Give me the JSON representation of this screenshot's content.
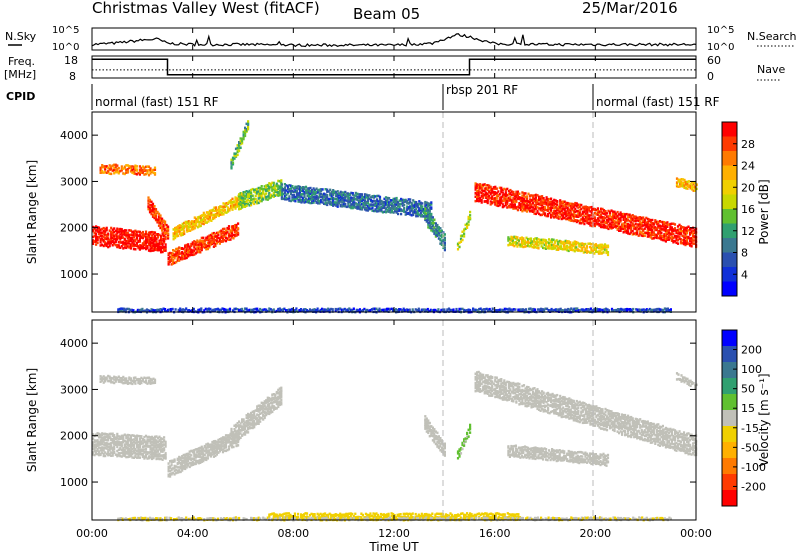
{
  "header": {
    "title": "Christmas Valley West (fitACF)",
    "beam": "Beam 05",
    "date": "25/Mar/2016"
  },
  "summary_panels": {
    "nsky_label": "N.Sky",
    "nsearch_label": "N.Search",
    "noise_ticks": [
      "10^5",
      "10^0"
    ],
    "freq_label_1": "Freq.",
    "freq_label_2": "[MHz]",
    "freq_ticks": [
      "18",
      "8"
    ],
    "nave_label": "Nave",
    "nave_ticks": [
      "60",
      "0"
    ],
    "cpid_label": "CPID",
    "cpid_segments": [
      {
        "label": "normal (fast) 151 RF",
        "start_hour": 0
      },
      {
        "label": "rbsp 201 RF",
        "start_hour": 14
      },
      {
        "label": "normal (fast) 151 RF",
        "start_hour": 20
      }
    ]
  },
  "axes": {
    "xlabel": "Time UT",
    "ylabel": "Slant Range [km]",
    "xticks": [
      "00:00",
      "04:00",
      "08:00",
      "12:00",
      "16:00",
      "20:00",
      "00:00"
    ],
    "yticks": [
      "1000",
      "2000",
      "3000",
      "4000"
    ]
  },
  "power_colorbar": {
    "label": "Power [dB]",
    "ticks": [
      "28",
      "24",
      "20",
      "16",
      "12",
      "8",
      "4"
    ],
    "colors": [
      "#ff0000",
      "#ff3a00",
      "#ff7a00",
      "#ffb000",
      "#f0d000",
      "#c8d800",
      "#60c030",
      "#30a070",
      "#3a7890",
      "#2a50b0",
      "#1030d8",
      "#0000ff"
    ]
  },
  "velocity_colorbar": {
    "label": "Velocity [m s⁻¹]",
    "ticks": [
      "200",
      "100",
      "50",
      "15",
      "-15",
      "-50",
      "-100",
      "-200"
    ],
    "colors": [
      "#0000ff",
      "#2a50b0",
      "#3a7890",
      "#30a070",
      "#60c030",
      "#c0c0b8",
      "#f0d000",
      "#ffb000",
      "#ff7a00",
      "#ff3a00",
      "#ff0000"
    ]
  },
  "chart_data": [
    {
      "type": "line",
      "name": "noise-summary",
      "x_range_hours": [
        0,
        24
      ],
      "series": [
        {
          "name": "N.Sky",
          "x": [
            0,
            1,
            2,
            2.6,
            3,
            4,
            6,
            8,
            10,
            12,
            13.5,
            14,
            14.5,
            15,
            16,
            18,
            20,
            22,
            24
          ],
          "y": [
            0.25,
            0.32,
            0.45,
            0.5,
            0.3,
            0.25,
            0.25,
            0.22,
            0.22,
            0.22,
            0.3,
            0.5,
            0.7,
            0.6,
            0.28,
            0.25,
            0.25,
            0.25,
            0.25
          ]
        }
      ]
    },
    {
      "type": "line",
      "name": "frequency-nave",
      "x_range_hours": [
        0,
        24
      ],
      "ylim_freq": [
        8,
        18
      ],
      "ylim_nave": [
        0,
        60
      ],
      "series": [
        {
          "name": "Freq.",
          "x": [
            0,
            3,
            3,
            15,
            15,
            24
          ],
          "y": [
            16.5,
            16.5,
            9.5,
            9.5,
            16.5,
            16.5
          ]
        },
        {
          "name": "Nave",
          "x": [
            0,
            24
          ],
          "y": [
            22,
            22
          ]
        }
      ]
    },
    {
      "type": "heatmap",
      "name": "power",
      "x_range_hours": [
        0,
        24
      ],
      "ylim": [
        180,
        4500
      ],
      "zlim": [
        0,
        30
      ],
      "bands": [
        {
          "t0": 0.0,
          "t1": 2.9,
          "r0s": 1850,
          "r0e": 1700,
          "width": 420,
          "z": 29
        },
        {
          "t0": 2.2,
          "t1": 3.0,
          "r0s": 2550,
          "r0e": 1900,
          "width": 300,
          "z": 27
        },
        {
          "t0": 3.0,
          "t1": 5.8,
          "r0s": 1350,
          "r0e": 2000,
          "width": 300,
          "z": 27
        },
        {
          "t0": 3.2,
          "t1": 6.0,
          "r0s": 1900,
          "r0e": 2650,
          "width": 250,
          "z": 20
        },
        {
          "t0": 0.3,
          "t1": 2.5,
          "r0s": 3300,
          "r0e": 3250,
          "width": 200,
          "z": 24
        },
        {
          "t0": 5.5,
          "t1": 6.2,
          "r0s": 3400,
          "r0e": 4300,
          "width": 220,
          "z": 13
        },
        {
          "t0": 5.8,
          "t1": 7.5,
          "r0s": 2600,
          "r0e": 2900,
          "width": 350,
          "z": 14
        },
        {
          "t0": 7.5,
          "t1": 13.5,
          "r0s": 2800,
          "r0e": 2400,
          "width": 350,
          "z": 8
        },
        {
          "t0": 13.2,
          "t1": 14.0,
          "r0s": 2300,
          "r0e": 1700,
          "width": 350,
          "z": 10
        },
        {
          "t0": 14.5,
          "t1": 15.0,
          "r0s": 1600,
          "r0e": 2300,
          "width": 200,
          "z": 16
        },
        {
          "t0": 15.2,
          "t1": 24.0,
          "r0s": 2800,
          "r0e": 1800,
          "width": 420,
          "z": 28
        },
        {
          "t0": 16.5,
          "t1": 20.5,
          "r0s": 1750,
          "r0e": 1550,
          "width": 220,
          "z": 18
        },
        {
          "t0": 23.2,
          "t1": 24.0,
          "r0s": 3000,
          "r0e": 2900,
          "width": 200,
          "z": 21
        },
        {
          "t0": 1.0,
          "t1": 23.0,
          "r0s": 220,
          "r0e": 220,
          "width": 120,
          "z": 5
        }
      ]
    },
    {
      "type": "heatmap",
      "name": "velocity",
      "x_range_hours": [
        0,
        24
      ],
      "ylim": [
        180,
        4500
      ],
      "zlim": [
        -250,
        250
      ],
      "bands": [
        {
          "t0": 0.0,
          "t1": 2.9,
          "r0s": 1850,
          "r0e": 1750,
          "width": 500,
          "z": 0
        },
        {
          "t0": 3.0,
          "t1": 5.8,
          "r0s": 1300,
          "r0e": 2000,
          "width": 350,
          "z": 0
        },
        {
          "t0": 5.5,
          "t1": 7.5,
          "r0s": 2000,
          "r0e": 2900,
          "width": 400,
          "z": 0
        },
        {
          "t0": 0.3,
          "t1": 2.5,
          "r0s": 3250,
          "r0e": 3200,
          "width": 150,
          "z": 0
        },
        {
          "t0": 13.2,
          "t1": 14.0,
          "r0s": 2300,
          "r0e": 1700,
          "width": 300,
          "z": 0
        },
        {
          "t0": 14.5,
          "t1": 15.0,
          "r0s": 1600,
          "r0e": 2200,
          "width": 200,
          "z": 30
        },
        {
          "t0": 15.2,
          "t1": 24.0,
          "r0s": 3200,
          "r0e": 1800,
          "width": 450,
          "z": 0
        },
        {
          "t0": 16.5,
          "t1": 20.5,
          "r0s": 1700,
          "r0e": 1500,
          "width": 250,
          "z": 0
        },
        {
          "t0": 23.2,
          "t1": 24.0,
          "r0s": 3300,
          "r0e": 3100,
          "width": 150,
          "z": 0
        },
        {
          "t0": 7.0,
          "t1": 17.0,
          "r0s": 260,
          "r0e": 260,
          "width": 180,
          "z": -40
        },
        {
          "t0": 1.0,
          "t1": 23.0,
          "r0s": 220,
          "r0e": 220,
          "width": 80,
          "z": -20
        }
      ]
    }
  ]
}
